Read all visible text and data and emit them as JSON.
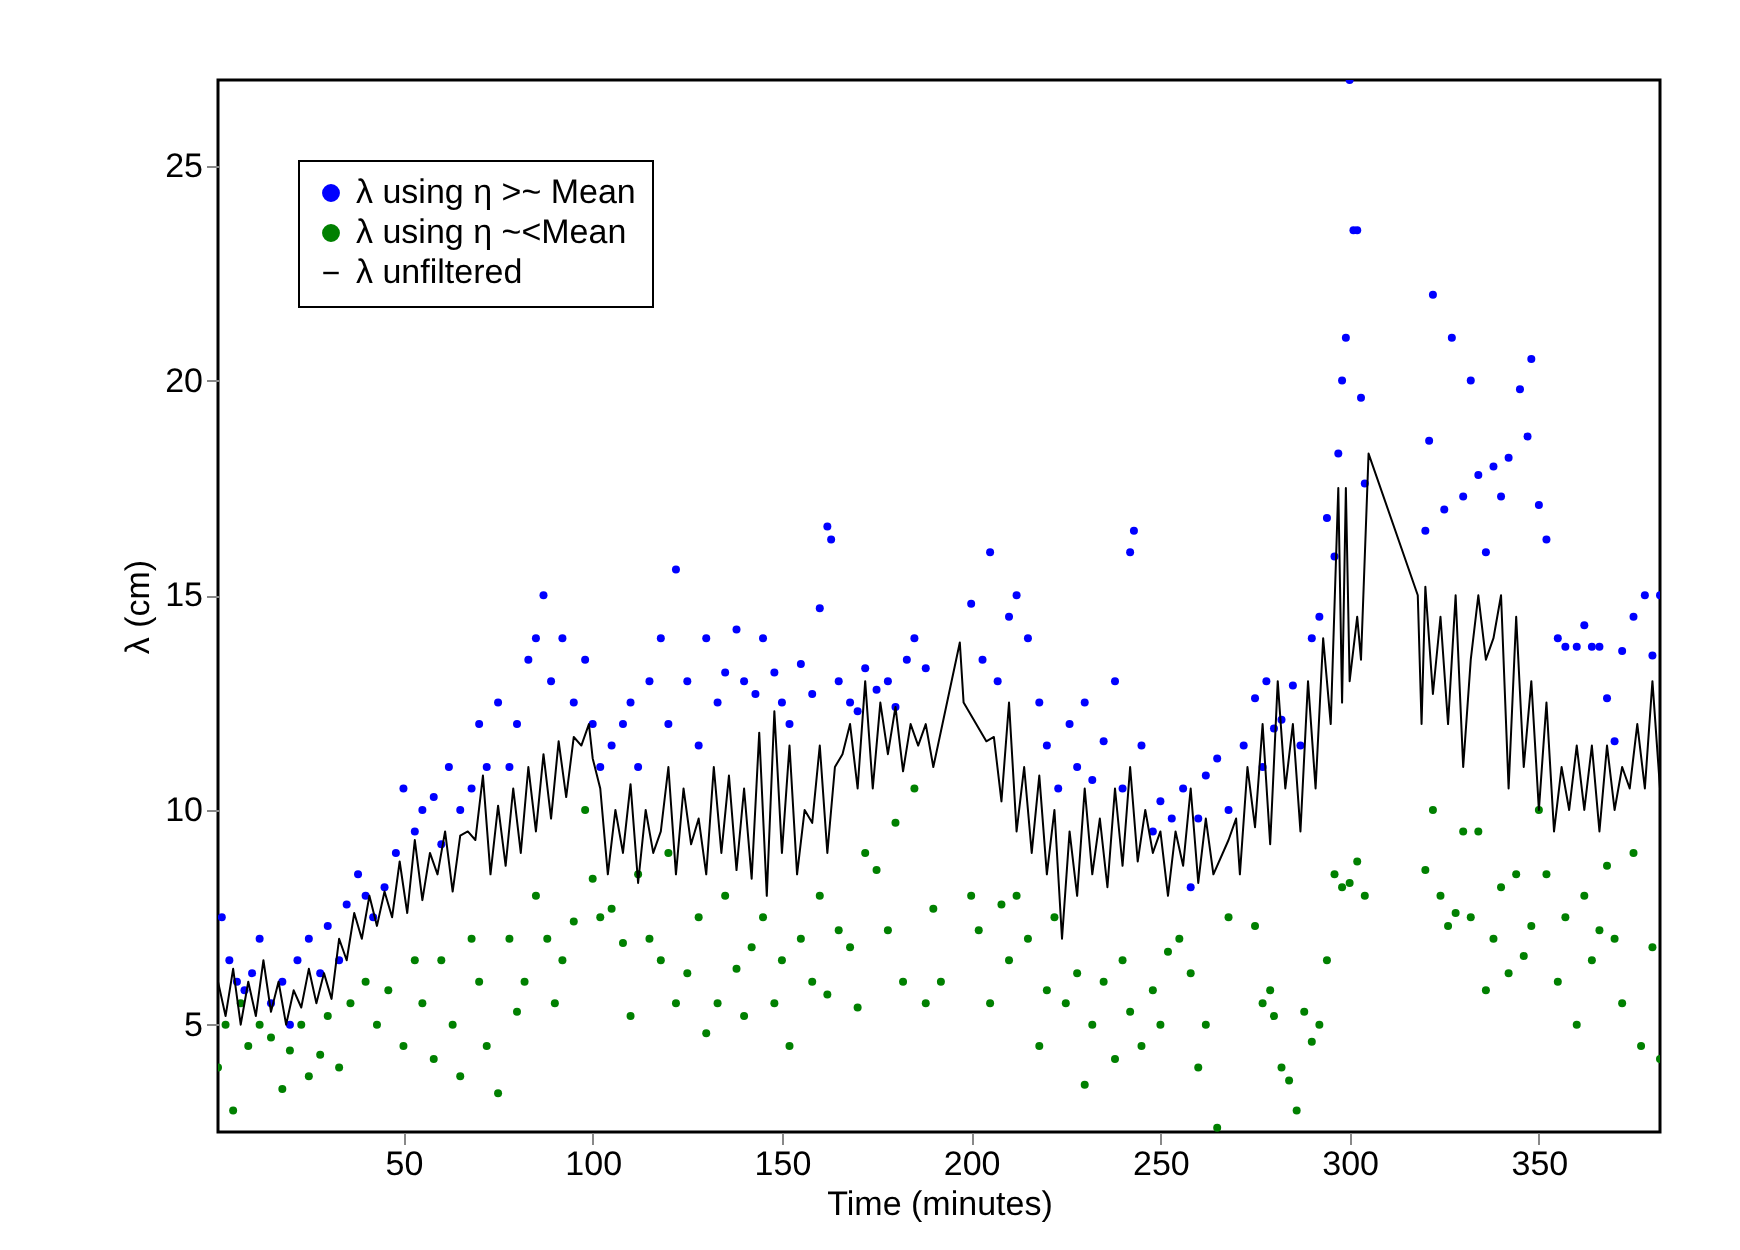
{
  "chart_data": {
    "type": "scatter",
    "xlabel": "Time (minutes)",
    "ylabel": "λ (cm)",
    "xlim": [
      1,
      382
    ],
    "ylim": [
      2.5,
      27
    ],
    "xticks": [
      50,
      100,
      150,
      200,
      250,
      300,
      350
    ],
    "yticks": [
      5,
      10,
      15,
      20,
      25
    ],
    "grid": false,
    "legend": "top left",
    "series": [
      {
        "name": "λ using η >~ Mean",
        "type": "scatter",
        "marker": "circle",
        "color": "#0000ff",
        "x": [
          2,
          4,
          6,
          8,
          10,
          12,
          15,
          18,
          20,
          22,
          25,
          28,
          30,
          33,
          35,
          38,
          40,
          42,
          45,
          48,
          50,
          53,
          55,
          58,
          60,
          62,
          65,
          68,
          70,
          72,
          75,
          78,
          80,
          83,
          85,
          87,
          89,
          92,
          95,
          98,
          100,
          102,
          105,
          108,
          110,
          112,
          115,
          118,
          120,
          122,
          125,
          128,
          130,
          133,
          135,
          138,
          140,
          143,
          145,
          148,
          150,
          152,
          155,
          158,
          160,
          162,
          163,
          165,
          168,
          170,
          172,
          175,
          178,
          180,
          183,
          185,
          188,
          200,
          203,
          205,
          207,
          210,
          212,
          215,
          218,
          220,
          223,
          226,
          228,
          230,
          232,
          235,
          238,
          240,
          242,
          243,
          245,
          248,
          250,
          253,
          256,
          258,
          260,
          262,
          265,
          268,
          272,
          275,
          277,
          278,
          280,
          282,
          285,
          287,
          290,
          292,
          294,
          296,
          297,
          298,
          299,
          300,
          301,
          302,
          303,
          304,
          320,
          321,
          322,
          325,
          327,
          330,
          332,
          334,
          336,
          338,
          340,
          342,
          345,
          347,
          348,
          350,
          352,
          355,
          357,
          360,
          362,
          364,
          366,
          368,
          370,
          372,
          375,
          378,
          380,
          382
        ],
        "values": [
          7.5,
          6.5,
          6,
          5.8,
          6.2,
          7,
          5.5,
          6,
          5,
          6.5,
          7,
          6.2,
          7.3,
          6.5,
          7.8,
          8.5,
          8,
          7.5,
          8.2,
          9,
          10.5,
          9.5,
          10,
          10.3,
          9.2,
          11,
          10,
          10.5,
          12,
          11,
          12.5,
          11,
          12,
          13.5,
          14,
          15,
          13,
          14,
          12.5,
          13.5,
          12,
          11,
          11.5,
          12,
          12.5,
          11,
          13,
          14,
          12,
          15.6,
          13,
          11.5,
          14,
          12.5,
          13.2,
          14.2,
          13,
          12.7,
          14,
          13.2,
          12.5,
          12,
          13.4,
          12.7,
          14.7,
          16.6,
          16.3,
          13,
          12.5,
          12.3,
          13.3,
          12.8,
          13,
          12.4,
          13.5,
          14,
          13.3,
          14.8,
          13.5,
          16,
          13,
          14.5,
          15,
          14,
          12.5,
          11.5,
          10.5,
          12,
          11,
          12.5,
          10.7,
          11.6,
          13,
          10.5,
          16,
          16.5,
          11.5,
          9.5,
          10.2,
          9.8,
          10.5,
          8.2,
          9.8,
          10.8,
          11.2,
          10,
          11.5,
          12.6,
          11,
          13,
          11.9,
          12.1,
          12.9,
          11.5,
          14,
          14.5,
          16.8,
          15.9,
          18.3,
          20,
          21,
          27,
          23.5,
          23.5,
          19.6,
          17.6,
          16.5,
          18.6,
          22,
          17,
          21,
          17.3,
          20,
          17.8,
          16,
          18,
          17.3,
          18.2,
          19.8,
          18.7,
          20.5,
          17.1,
          16.3,
          14,
          13.8,
          13.8,
          14.3,
          13.8,
          13.8,
          12.6,
          11.6,
          13.7,
          14.5,
          15,
          13.6,
          15
        ]
      },
      {
        "name": "λ using η ~<Mean",
        "type": "scatter",
        "marker": "circle",
        "color": "#008000",
        "x": [
          1,
          3,
          5,
          7,
          9,
          12,
          15,
          18,
          20,
          23,
          25,
          28,
          30,
          33,
          36,
          40,
          43,
          46,
          50,
          53,
          55,
          58,
          60,
          63,
          65,
          68,
          70,
          72,
          75,
          78,
          80,
          82,
          85,
          88,
          90,
          92,
          95,
          98,
          100,
          102,
          105,
          108,
          110,
          112,
          115,
          118,
          120,
          122,
          125,
          128,
          130,
          133,
          135,
          138,
          140,
          142,
          145,
          148,
          150,
          152,
          155,
          158,
          160,
          162,
          165,
          168,
          170,
          172,
          175,
          178,
          180,
          182,
          185,
          188,
          190,
          192,
          200,
          202,
          205,
          208,
          210,
          212,
          215,
          218,
          220,
          222,
          225,
          228,
          230,
          232,
          235,
          238,
          240,
          242,
          245,
          248,
          250,
          252,
          255,
          258,
          260,
          262,
          265,
          268,
          275,
          277,
          279,
          280,
          282,
          284,
          286,
          288,
          290,
          292,
          294,
          296,
          298,
          300,
          302,
          304,
          320,
          322,
          324,
          326,
          328,
          330,
          332,
          334,
          336,
          338,
          340,
          342,
          344,
          346,
          348,
          350,
          352,
          355,
          357,
          360,
          362,
          364,
          366,
          368,
          370,
          372,
          375,
          377,
          380,
          382
        ],
        "values": [
          4,
          5,
          3,
          5.5,
          4.5,
          5,
          4.7,
          3.5,
          4.4,
          5,
          3.8,
          4.3,
          5.2,
          4,
          5.5,
          6,
          5,
          5.8,
          4.5,
          6.5,
          5.5,
          4.2,
          6.5,
          5,
          3.8,
          7,
          6,
          4.5,
          3.4,
          7,
          5.3,
          6,
          8,
          7,
          5.5,
          6.5,
          7.4,
          10,
          8.4,
          7.5,
          7.7,
          6.9,
          5.2,
          8.5,
          7,
          6.5,
          9,
          5.5,
          6.2,
          7.5,
          4.8,
          5.5,
          8,
          6.3,
          5.2,
          6.8,
          7.5,
          5.5,
          6.5,
          4.5,
          7,
          6,
          8,
          5.7,
          7.2,
          6.8,
          5.4,
          9,
          8.6,
          7.2,
          9.7,
          6,
          10.5,
          5.5,
          7.7,
          6,
          8,
          7.2,
          5.5,
          7.8,
          6.5,
          8,
          7,
          4.5,
          5.8,
          7.5,
          5.5,
          6.2,
          3.6,
          5,
          6,
          4.2,
          6.5,
          5.3,
          4.5,
          5.8,
          5,
          6.7,
          7,
          6.2,
          4,
          5,
          2.6,
          7.5,
          7.3,
          5.5,
          5.8,
          5.2,
          4,
          3.7,
          3,
          5.3,
          4.6,
          5,
          6.5,
          8.5,
          8.2,
          8.3,
          8.8,
          8,
          8.6,
          10,
          8,
          7.3,
          7.6,
          9.5,
          7.5,
          9.5,
          5.8,
          7,
          8.2,
          6.2,
          8.5,
          6.6,
          7.3,
          10,
          8.5,
          6,
          7.5,
          5,
          8,
          6.5,
          7.2,
          8.7,
          7,
          5.5,
          9,
          4.5,
          6.8,
          4.2
        ]
      },
      {
        "name": "λ unfiltered",
        "type": "line",
        "marker": "none",
        "line_style": "solid",
        "color": "#000000",
        "x": [
          1,
          3,
          5,
          7,
          9,
          11,
          13,
          15,
          17,
          19,
          21,
          23,
          25,
          27,
          29,
          31,
          33,
          35,
          37,
          39,
          41,
          43,
          45,
          47,
          49,
          51,
          53,
          55,
          57,
          59,
          61,
          63,
          65,
          67,
          69,
          71,
          73,
          75,
          77,
          79,
          81,
          83,
          85,
          87,
          89,
          91,
          93,
          95,
          97,
          99,
          100,
          102,
          104,
          106,
          108,
          110,
          112,
          114,
          116,
          118,
          120,
          122,
          124,
          126,
          128,
          130,
          132,
          134,
          136,
          138,
          140,
          142,
          144,
          146,
          148,
          150,
          152,
          154,
          156,
          158,
          160,
          162,
          164,
          166,
          168,
          170,
          172,
          174,
          176,
          178,
          180,
          182,
          184,
          186,
          188,
          190,
          197,
          198,
          204,
          206,
          208,
          210,
          212,
          214,
          216,
          218,
          220,
          222,
          224,
          226,
          228,
          230,
          232,
          234,
          236,
          238,
          240,
          242,
          244,
          246,
          248,
          250,
          252,
          254,
          256,
          258,
          260,
          262,
          264,
          268,
          270,
          271,
          273,
          275,
          277,
          279,
          281,
          283,
          285,
          287,
          289,
          291,
          293,
          295,
          297,
          298,
          299,
          300,
          302,
          303,
          305,
          318,
          319,
          320,
          322,
          324,
          326,
          328,
          330,
          332,
          334,
          336,
          338,
          340,
          342,
          344,
          346,
          348,
          350,
          352,
          354,
          356,
          358,
          360,
          362,
          364,
          366,
          368,
          370,
          372,
          374,
          376,
          378,
          380,
          382
        ],
        "values": [
          6,
          5.2,
          6.3,
          5,
          6,
          5.2,
          6.5,
          5.3,
          6,
          5,
          5.8,
          5.4,
          6.3,
          5.5,
          6.2,
          5.6,
          7,
          6.5,
          7.6,
          7,
          8,
          7.3,
          8.1,
          7.5,
          8.8,
          7.6,
          9.3,
          7.9,
          9,
          8.5,
          9.5,
          8.1,
          9.4,
          9.5,
          9.3,
          10.8,
          8.5,
          10.1,
          8.7,
          10.5,
          9,
          11,
          9.5,
          11.3,
          9.8,
          11.6,
          10.3,
          11.7,
          11.5,
          12,
          11.2,
          10.5,
          8.5,
          10,
          9,
          10.6,
          8.3,
          10,
          9,
          9.5,
          11,
          8.5,
          10.5,
          9.2,
          9.8,
          8.5,
          11,
          9,
          10.8,
          8.6,
          10.5,
          8.4,
          11.8,
          8,
          12.3,
          9,
          11.5,
          8.5,
          10,
          9.7,
          11.5,
          9,
          11,
          11.3,
          12,
          10.5,
          13,
          10.5,
          12.5,
          11.3,
          12.4,
          10.9,
          12,
          11.5,
          12,
          11,
          13.9,
          12.5,
          11.6,
          11.7,
          10.2,
          12.5,
          9.5,
          11,
          9,
          10.8,
          8.5,
          10,
          7,
          9.5,
          8,
          10.5,
          8.5,
          9.8,
          8.2,
          10.5,
          8.7,
          11,
          8.8,
          10,
          9,
          9.5,
          8,
          9.5,
          8.7,
          10.5,
          8.3,
          9.8,
          8.5,
          9.3,
          9.8,
          8.5,
          11,
          9.6,
          12,
          9.2,
          13,
          10.5,
          12,
          9.5,
          13,
          10.5,
          14,
          12,
          17.5,
          12.5,
          17.5,
          13,
          14.5,
          13.5,
          18.3,
          15,
          12,
          15.2,
          12.7,
          14.5,
          12,
          15,
          11,
          13.5,
          15,
          13.5,
          14,
          15,
          10.5,
          14.5,
          11,
          13,
          10,
          12.5,
          9.5,
          11,
          10,
          11.5,
          10,
          11.5,
          9.5,
          11.5,
          10,
          11,
          10.5,
          12,
          10.5,
          13,
          10.5
        ]
      }
    ]
  }
}
